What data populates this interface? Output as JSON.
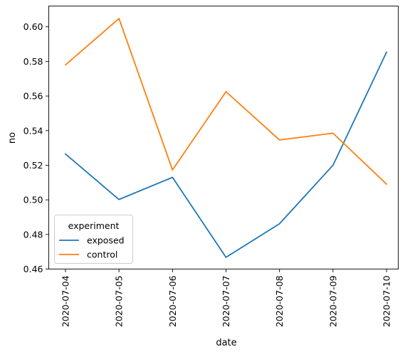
{
  "chart_data": {
    "type": "line",
    "x": [
      "2020-07-04",
      "2020-07-05",
      "2020-07-06",
      "2020-07-07",
      "2020-07-08",
      "2020-07-09",
      "2020-07-10"
    ],
    "series": [
      {
        "name": "exposed",
        "color": "#1f77b4",
        "values": [
          0.5265,
          0.5002,
          0.513,
          0.4668,
          0.4862,
          0.52,
          0.5853
        ]
      },
      {
        "name": "control",
        "color": "#ff7f0e",
        "values": [
          0.578,
          0.6048,
          0.5173,
          0.5625,
          0.5346,
          0.5385,
          0.5091
        ]
      }
    ],
    "xlabel": "date",
    "ylabel": "no",
    "ylim": [
      0.46,
      0.612
    ],
    "yticks": [
      "0.46",
      "0.48",
      "0.50",
      "0.52",
      "0.54",
      "0.56",
      "0.58",
      "0.60"
    ],
    "legend": {
      "title": "experiment",
      "placement": "lower-left"
    },
    "grid": false
  }
}
